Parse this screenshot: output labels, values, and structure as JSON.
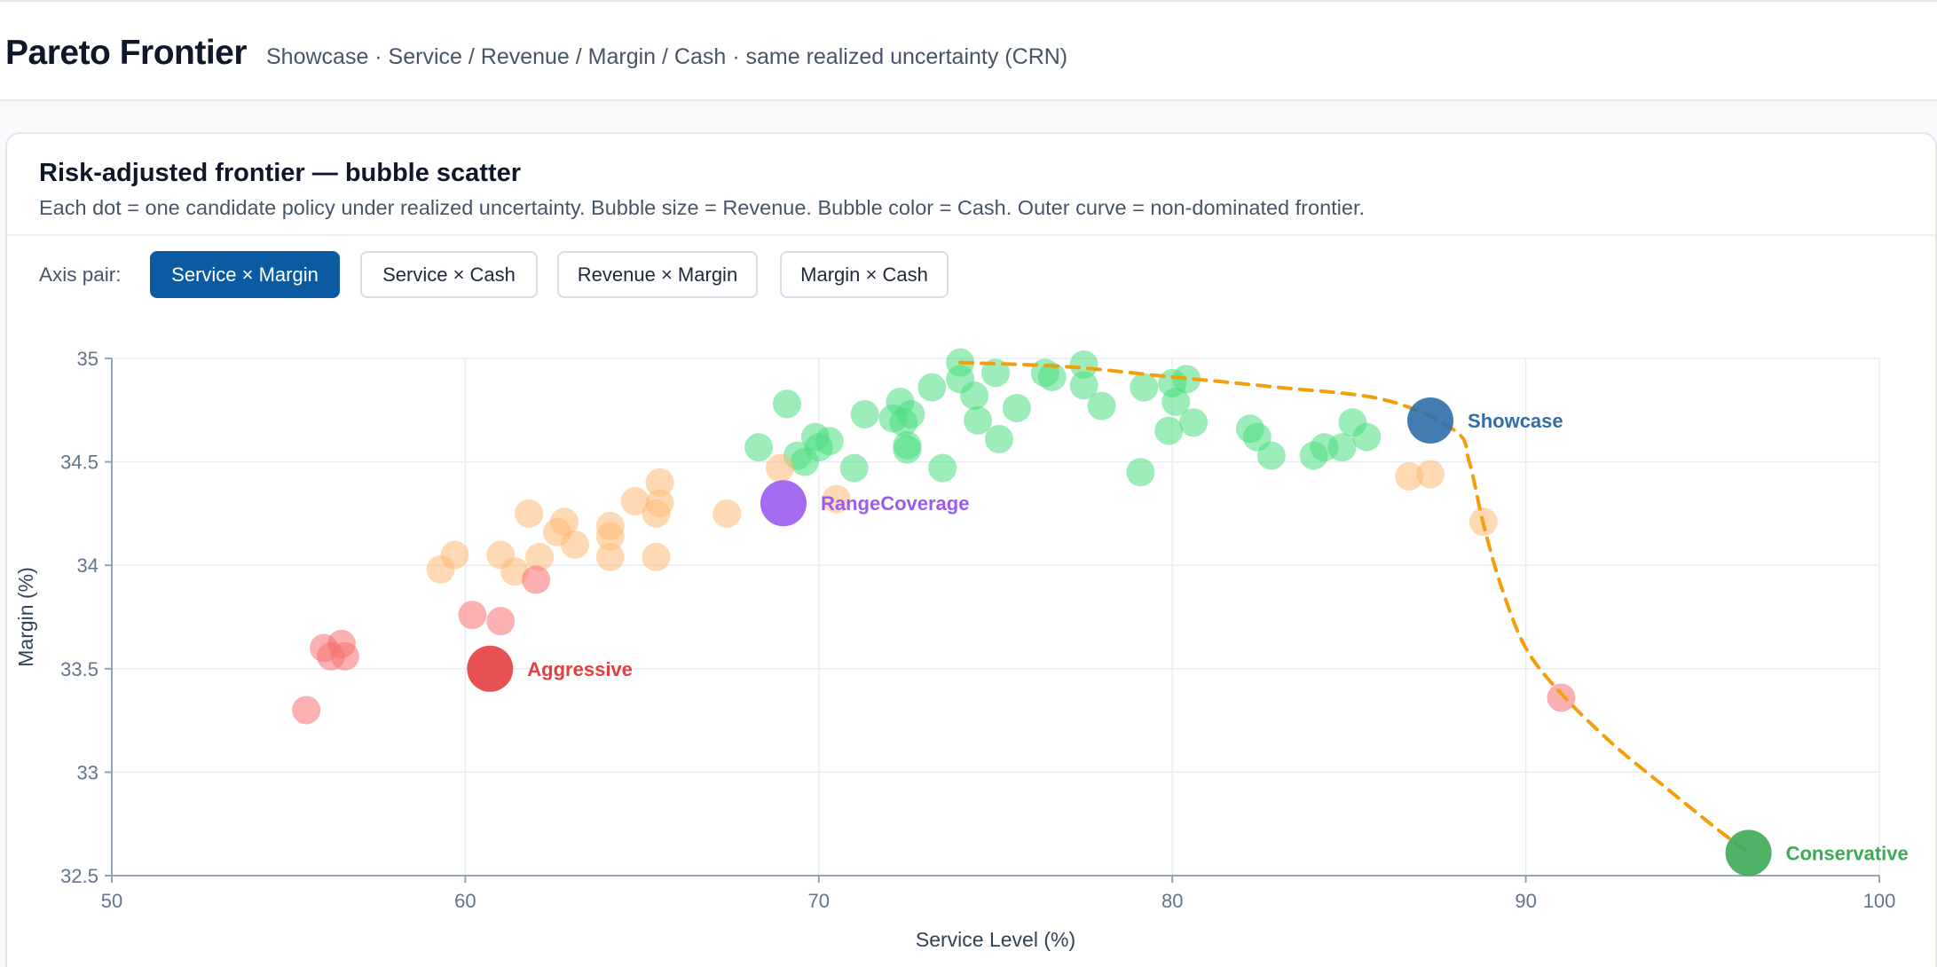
{
  "header": {
    "title": "Pareto Frontier",
    "subtitle": "Showcase · Service / Revenue / Margin / Cash · same realized uncertainty (CRN)"
  },
  "card": {
    "title": "Risk-adjusted frontier — bubble scatter",
    "description": "Each dot = one candidate policy under realized uncertainty. Bubble size = Revenue. Bubble color = Cash. Outer curve = non-dominated frontier."
  },
  "controls": {
    "axis_pair_label": "Axis pair:",
    "options": [
      "Service × Margin",
      "Service × Cash",
      "Revenue × Margin",
      "Margin × Cash"
    ],
    "selected": "Service × Margin"
  },
  "colors": {
    "accent": "#0b5aa2",
    "cash_high": "#4ade80",
    "cash_mid": "#fdba74",
    "cash_low": "#f87171",
    "frontier": "#f59e0b",
    "showcase": "#2f6ea8",
    "aggressive": "#e53e3e",
    "conservative": "#3daa55",
    "range_coverage": "#9a5cf0"
  },
  "chart_data": {
    "type": "scatter",
    "xlabel": "Service Level (%)",
    "ylabel": "Margin (%)",
    "xlim": [
      50,
      100
    ],
    "ylim": [
      32.5,
      35
    ],
    "xticks": [
      50,
      60,
      70,
      80,
      90,
      100
    ],
    "yticks": [
      32.5,
      33,
      33.5,
      34,
      34.5,
      35
    ],
    "grid": true,
    "series": [
      {
        "cash": "high",
        "points": [
          [
            74.0,
            34.98
          ],
          [
            75.0,
            34.93
          ],
          [
            77.5,
            34.97
          ],
          [
            76.4,
            34.93
          ],
          [
            76.6,
            34.91
          ],
          [
            74.0,
            34.9
          ],
          [
            73.2,
            34.86
          ],
          [
            74.4,
            34.82
          ],
          [
            77.5,
            34.87
          ],
          [
            79.2,
            34.86
          ],
          [
            80.0,
            34.88
          ],
          [
            80.4,
            34.9
          ],
          [
            80.1,
            34.79
          ],
          [
            75.6,
            34.76
          ],
          [
            78.0,
            34.77
          ],
          [
            69.1,
            34.78
          ],
          [
            72.3,
            34.79
          ],
          [
            71.3,
            34.73
          ],
          [
            72.1,
            34.71
          ],
          [
            72.6,
            34.73
          ],
          [
            72.4,
            34.69
          ],
          [
            74.5,
            34.7
          ],
          [
            80.6,
            34.69
          ],
          [
            79.9,
            34.65
          ],
          [
            82.2,
            34.66
          ],
          [
            82.4,
            34.62
          ],
          [
            85.1,
            34.69
          ],
          [
            85.5,
            34.62
          ],
          [
            75.1,
            34.61
          ],
          [
            69.9,
            34.62
          ],
          [
            70.3,
            34.6
          ],
          [
            68.3,
            34.57
          ],
          [
            70.0,
            34.57
          ],
          [
            72.5,
            34.58
          ],
          [
            72.5,
            34.56
          ],
          [
            84.3,
            34.57
          ],
          [
            84.8,
            34.57
          ],
          [
            82.8,
            34.53
          ],
          [
            84.0,
            34.53
          ],
          [
            69.4,
            34.53
          ],
          [
            69.6,
            34.5
          ],
          [
            71.0,
            34.47
          ],
          [
            73.5,
            34.47
          ],
          [
            79.1,
            34.45
          ]
        ]
      },
      {
        "cash": "mid",
        "points": [
          [
            65.5,
            34.4
          ],
          [
            64.8,
            34.31
          ],
          [
            65.5,
            34.3
          ],
          [
            65.4,
            34.25
          ],
          [
            67.4,
            34.25
          ],
          [
            61.8,
            34.25
          ],
          [
            62.8,
            34.21
          ],
          [
            64.1,
            34.19
          ],
          [
            62.6,
            34.16
          ],
          [
            64.1,
            34.14
          ],
          [
            63.1,
            34.1
          ],
          [
            61.0,
            34.05
          ],
          [
            59.7,
            34.05
          ],
          [
            62.1,
            34.04
          ],
          [
            64.1,
            34.04
          ],
          [
            65.4,
            34.04
          ],
          [
            59.3,
            33.98
          ],
          [
            61.4,
            33.97
          ],
          [
            68.9,
            34.47
          ],
          [
            70.5,
            34.32
          ],
          [
            86.7,
            34.43
          ],
          [
            87.3,
            34.44
          ],
          [
            88.8,
            34.21
          ]
        ]
      },
      {
        "cash": "low",
        "points": [
          [
            56.0,
            33.6
          ],
          [
            56.5,
            33.62
          ],
          [
            56.2,
            33.56
          ],
          [
            56.6,
            33.56
          ],
          [
            55.5,
            33.3
          ],
          [
            60.2,
            33.76
          ],
          [
            61.0,
            33.73
          ],
          [
            62.0,
            33.93
          ],
          [
            91.0,
            33.36
          ]
        ]
      }
    ],
    "highlights": [
      {
        "name": "Showcase",
        "x": 87.3,
        "y": 34.7,
        "cash": "showcase"
      },
      {
        "name": "RangeCoverage",
        "x": 69.0,
        "y": 34.3,
        "cash": "range_coverage"
      },
      {
        "name": "Aggressive",
        "x": 60.7,
        "y": 33.5,
        "cash": "aggressive"
      },
      {
        "name": "Conservative",
        "x": 96.3,
        "y": 32.61,
        "cash": "conservative"
      }
    ],
    "frontier": [
      [
        74.0,
        34.98
      ],
      [
        77.0,
        34.96
      ],
      [
        80.0,
        34.91
      ],
      [
        83.0,
        34.86
      ],
      [
        86.0,
        34.8
      ],
      [
        88.0,
        34.65
      ],
      [
        88.4,
        34.5
      ],
      [
        88.8,
        34.2
      ],
      [
        89.3,
        33.9
      ],
      [
        90.0,
        33.6
      ],
      [
        91.0,
        33.38
      ],
      [
        92.5,
        33.13
      ],
      [
        94.0,
        32.92
      ],
      [
        95.3,
        32.74
      ],
      [
        96.3,
        32.61
      ]
    ]
  }
}
